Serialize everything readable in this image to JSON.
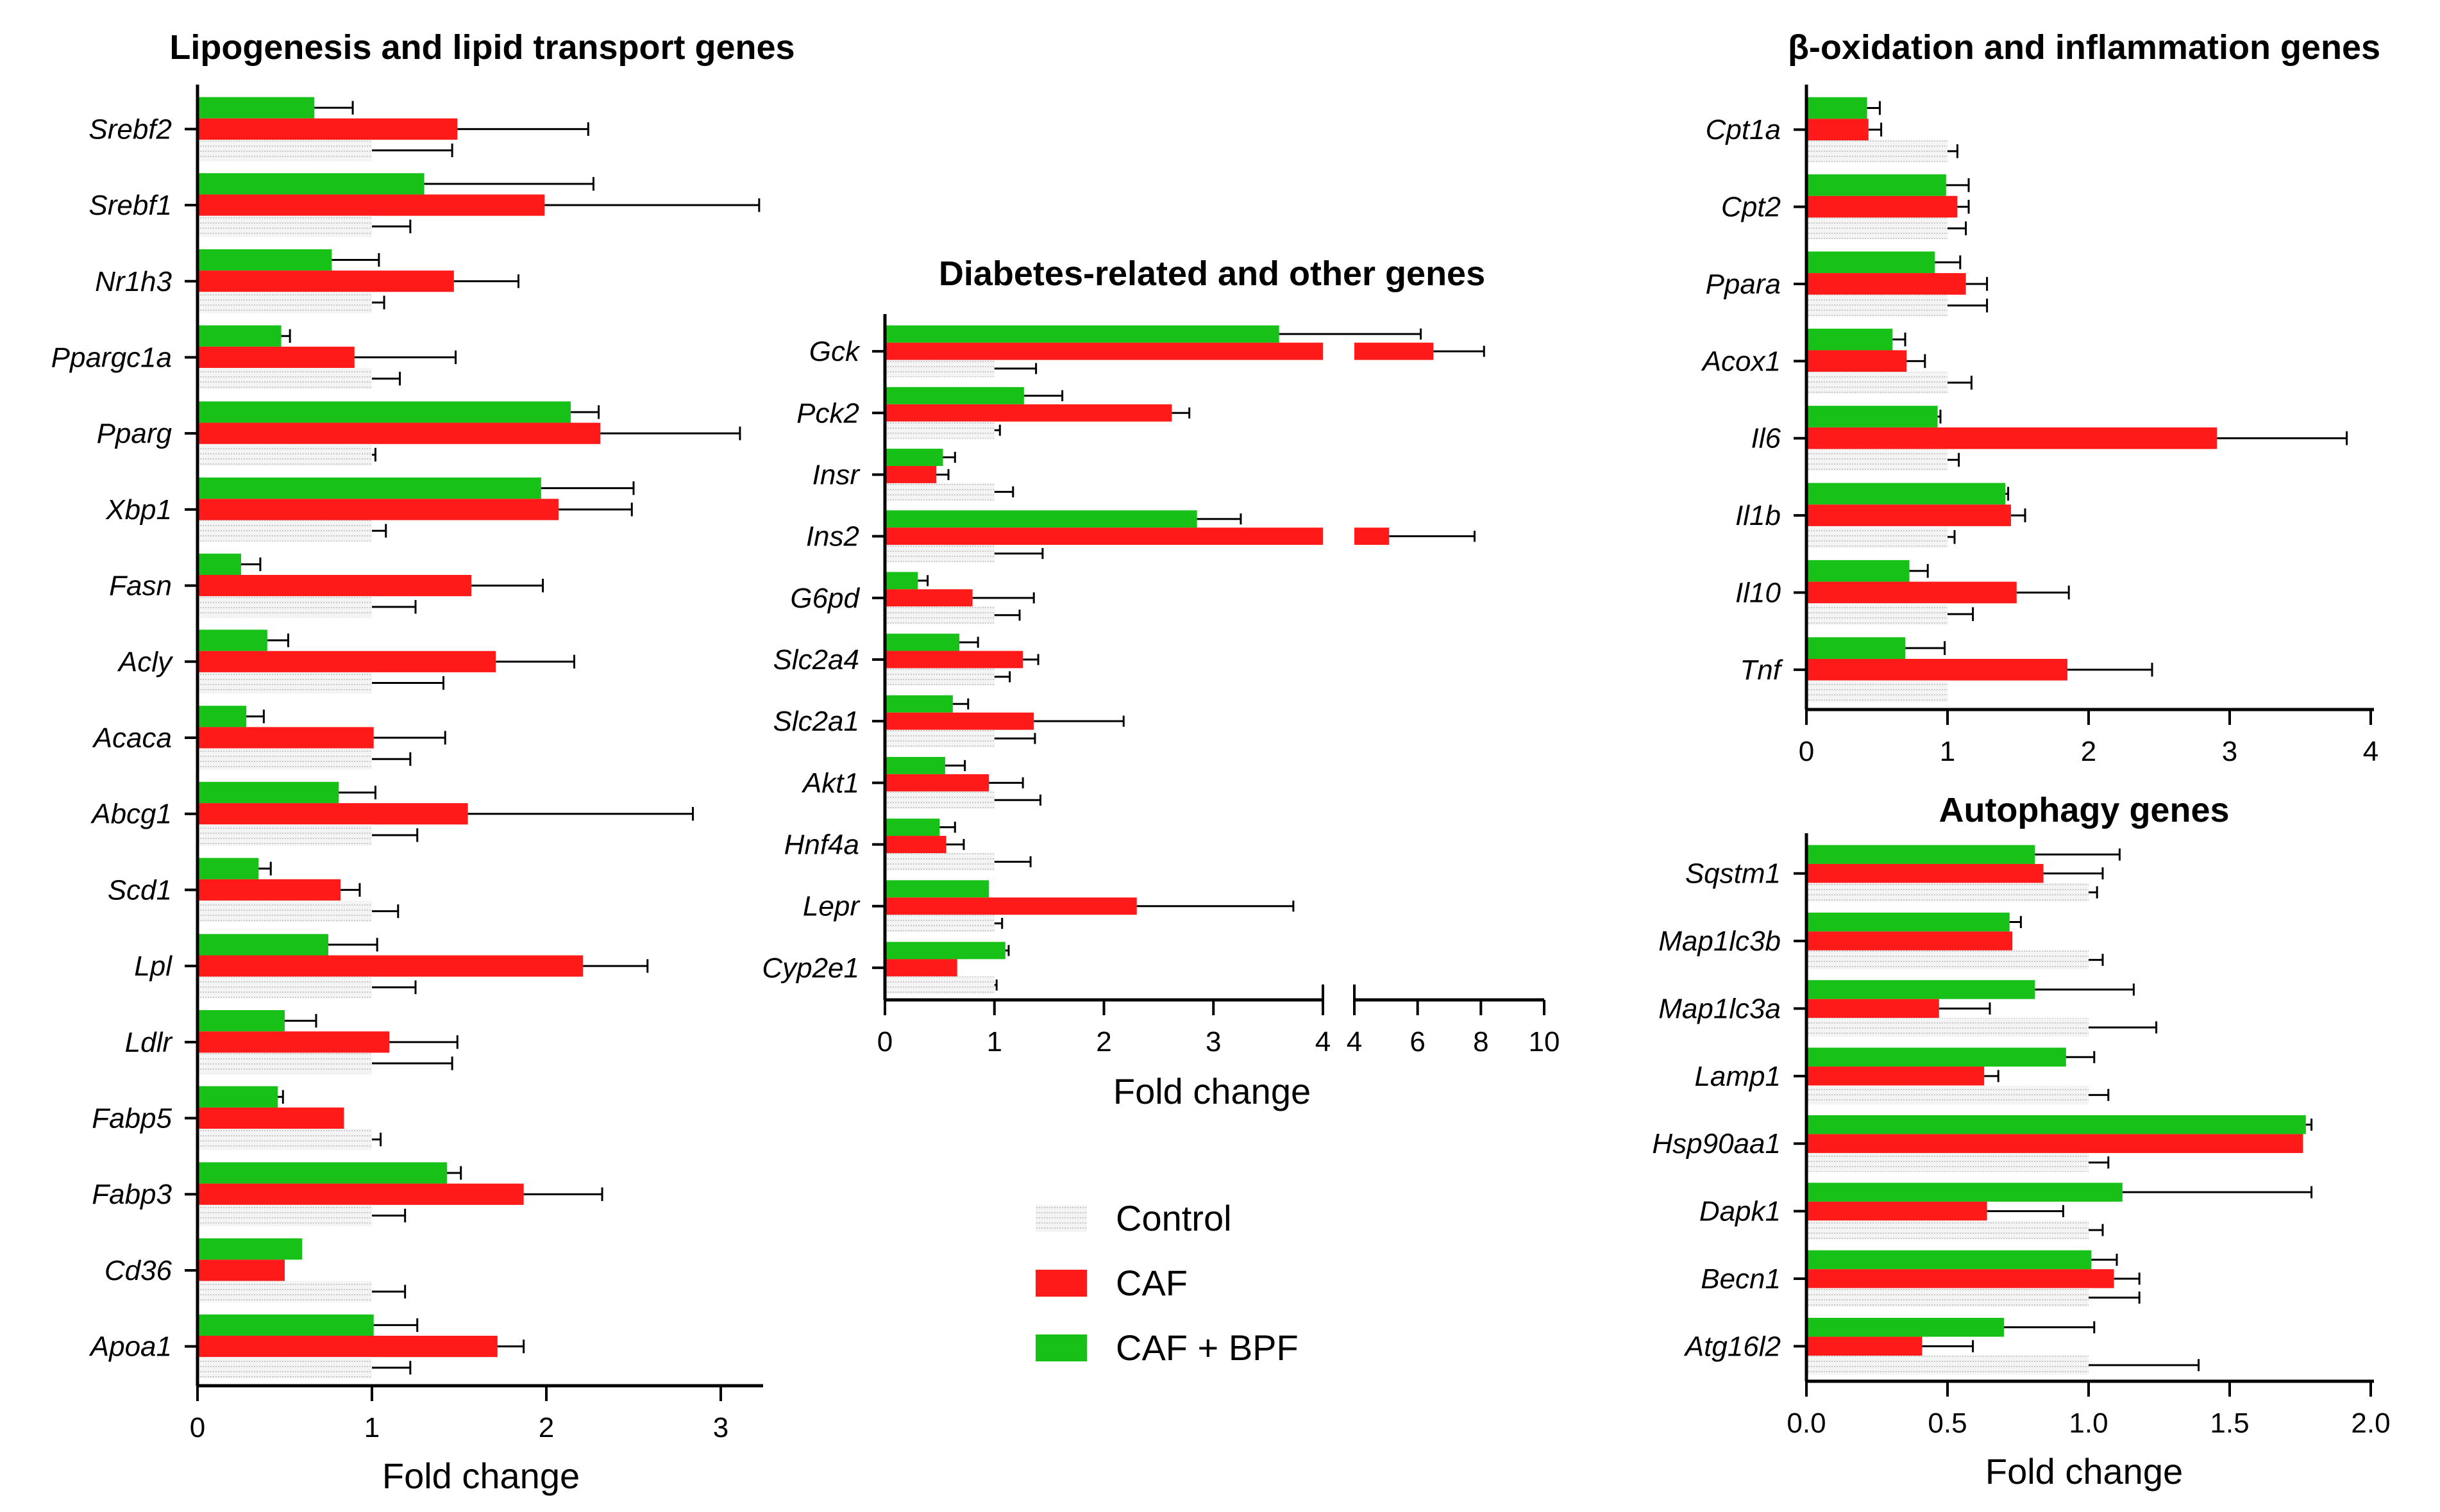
{
  "legend": [
    {
      "label": "Control",
      "key": "ctrl"
    },
    {
      "label": "CAF",
      "key": "caf"
    },
    {
      "label": "CAF + BPF",
      "key": "bpf"
    }
  ],
  "colors": {
    "ctrl": "#d9d9d9",
    "caf": "#ff1a1a",
    "bpf": "#17c117",
    "axis": "#000000"
  },
  "chart_data": [
    {
      "type": "bar",
      "orientation": "horizontal",
      "title": "Lipogenesis and lipid transport genes",
      "xlabel": "Fold change",
      "xlim": [
        0,
        3.2
      ],
      "xticks": [
        0,
        1,
        2,
        3
      ],
      "categories": [
        "Srebf2",
        "Srebf1",
        "Nr1h3",
        "Ppargc1a",
        "Pparg",
        "Xbp1",
        "Fasn",
        "Acly",
        "Acaca",
        "Abcg1",
        "Scd1",
        "Lpl",
        "Ldlr",
        "Fabp5",
        "Fabp3",
        "Cd36",
        "Apoa1"
      ],
      "series": [
        {
          "name": "CAF + BPF",
          "values": [
            0.67,
            1.3,
            0.77,
            0.48,
            2.14,
            1.97,
            0.25,
            0.4,
            0.28,
            0.81,
            0.35,
            0.75,
            0.5,
            0.46,
            1.43,
            0.6,
            1.01
          ],
          "errors": [
            0.22,
            0.97,
            0.27,
            0.05,
            0.16,
            0.53,
            0.11,
            0.12,
            0.1,
            0.21,
            0.07,
            0.28,
            0.18,
            0.03,
            0.08,
            0.0,
            0.25
          ]
        },
        {
          "name": "CAF",
          "values": [
            1.49,
            1.99,
            1.47,
            0.9,
            2.31,
            2.07,
            1.57,
            1.71,
            1.01,
            1.55,
            0.82,
            2.21,
            1.1,
            0.84,
            1.87,
            0.5,
            1.72
          ],
          "errors": [
            0.75,
            1.23,
            0.37,
            0.58,
            0.8,
            0.42,
            0.41,
            0.45,
            0.41,
            1.29,
            0.11,
            0.37,
            0.39,
            0.0,
            0.45,
            0.0,
            0.15
          ]
        },
        {
          "name": "Control",
          "values": [
            1,
            1,
            1,
            1,
            1,
            1,
            1,
            1,
            1,
            1,
            1,
            1,
            1,
            1,
            1,
            1,
            1
          ],
          "errors": [
            0.46,
            0.22,
            0.07,
            0.16,
            0.02,
            0.08,
            0.25,
            0.41,
            0.22,
            0.26,
            0.15,
            0.25,
            0.46,
            0.05,
            0.19,
            0.19,
            0.22
          ]
        }
      ]
    },
    {
      "type": "bar",
      "orientation": "horizontal",
      "title": "Diabetes-related and other genes",
      "xlabel": "Fold change",
      "axis_break": {
        "first_segment": [
          0,
          4
        ],
        "second_segment": [
          4,
          10
        ]
      },
      "xticks_segment1": [
        0,
        1,
        2,
        3,
        4
      ],
      "xticks_segment2": [
        4,
        6,
        8,
        10
      ],
      "categories": [
        "Gck",
        "Pck2",
        "Insr",
        "Ins2",
        "G6pd",
        "Slc2a4",
        "Slc2a1",
        "Akt1",
        "Hnf4a",
        "Lepr",
        "Cyp2e1"
      ],
      "series": [
        {
          "name": "CAF + BPF",
          "values": [
            3.6,
            1.27,
            0.53,
            2.85,
            0.3,
            0.68,
            0.62,
            0.55,
            0.5,
            0.95,
            1.1
          ],
          "errors": [
            2.5,
            0.35,
            0.11,
            0.4,
            0.09,
            0.17,
            0.14,
            0.18,
            0.14,
            0.0,
            0.03
          ]
        },
        {
          "name": "CAF",
          "values": [
            6.5,
            2.62,
            0.47,
            5.1,
            0.8,
            1.26,
            1.36,
            0.95,
            0.56,
            2.3,
            0.66
          ],
          "errors": [
            1.6,
            0.16,
            0.11,
            2.7,
            0.56,
            0.14,
            0.82,
            0.31,
            0.16,
            1.43,
            0.0
          ]
        },
        {
          "name": "Control",
          "values": [
            1,
            1,
            1,
            1,
            1,
            1,
            1,
            1,
            1,
            1,
            1
          ],
          "errors": [
            0.38,
            0.05,
            0.17,
            0.44,
            0.23,
            0.14,
            0.37,
            0.42,
            0.33,
            0.07,
            0.02
          ]
        }
      ]
    },
    {
      "type": "bar",
      "orientation": "horizontal",
      "title": "β-oxidation and inflammation genes",
      "xlabel": "",
      "xlim": [
        0,
        4
      ],
      "xticks": [
        0,
        1,
        2,
        3,
        4
      ],
      "categories": [
        "Cpt1a",
        "Cpt2",
        "Ppara",
        "Acox1",
        "Il6",
        "Il1b",
        "Il10",
        "Tnf"
      ],
      "series": [
        {
          "name": "CAF + BPF",
          "values": [
            0.43,
            0.99,
            0.91,
            0.61,
            0.93,
            1.41,
            0.73,
            0.7
          ],
          "errors": [
            0.09,
            0.16,
            0.18,
            0.09,
            0.02,
            0.02,
            0.13,
            0.28
          ]
        },
        {
          "name": "CAF",
          "values": [
            0.44,
            1.07,
            1.13,
            0.71,
            2.91,
            1.45,
            1.49,
            1.85
          ],
          "errors": [
            0.09,
            0.08,
            0.15,
            0.13,
            0.92,
            0.1,
            0.37,
            0.6
          ]
        },
        {
          "name": "Control",
          "values": [
            1,
            1,
            1,
            1,
            1,
            1,
            1,
            1
          ],
          "errors": [
            0.07,
            0.13,
            0.28,
            0.17,
            0.08,
            0.05,
            0.18,
            0.0
          ]
        }
      ]
    },
    {
      "type": "bar",
      "orientation": "horizontal",
      "title": "Autophagy genes",
      "xlabel": "Fold change",
      "xlim": [
        0,
        2.0
      ],
      "xticks": [
        0.0,
        0.5,
        1.0,
        1.5,
        2.0
      ],
      "xtick_labels": [
        "0.0",
        "0.5",
        "1.0",
        "1.5",
        "2.0"
      ],
      "categories": [
        "Sqstm1",
        "Map1lc3b",
        "Map1lc3a",
        "Lamp1",
        "Hsp90aa1",
        "Dapk1",
        "Becn1",
        "Atg16l2"
      ],
      "series": [
        {
          "name": "CAF + BPF",
          "values": [
            0.81,
            0.72,
            0.81,
            0.92,
            1.77,
            1.12,
            1.01,
            0.7
          ],
          "errors": [
            0.3,
            0.04,
            0.35,
            0.1,
            0.02,
            0.67,
            0.09,
            0.32
          ]
        },
        {
          "name": "CAF",
          "values": [
            0.84,
            0.73,
            0.47,
            0.63,
            1.76,
            0.64,
            1.09,
            0.41
          ],
          "errors": [
            0.21,
            0.0,
            0.18,
            0.05,
            0.0,
            0.27,
            0.09,
            0.18
          ]
        },
        {
          "name": "Control",
          "values": [
            1,
            1,
            1,
            1,
            1,
            1,
            1,
            1
          ],
          "errors": [
            0.03,
            0.05,
            0.24,
            0.07,
            0.07,
            0.05,
            0.18,
            0.39
          ]
        }
      ]
    }
  ]
}
